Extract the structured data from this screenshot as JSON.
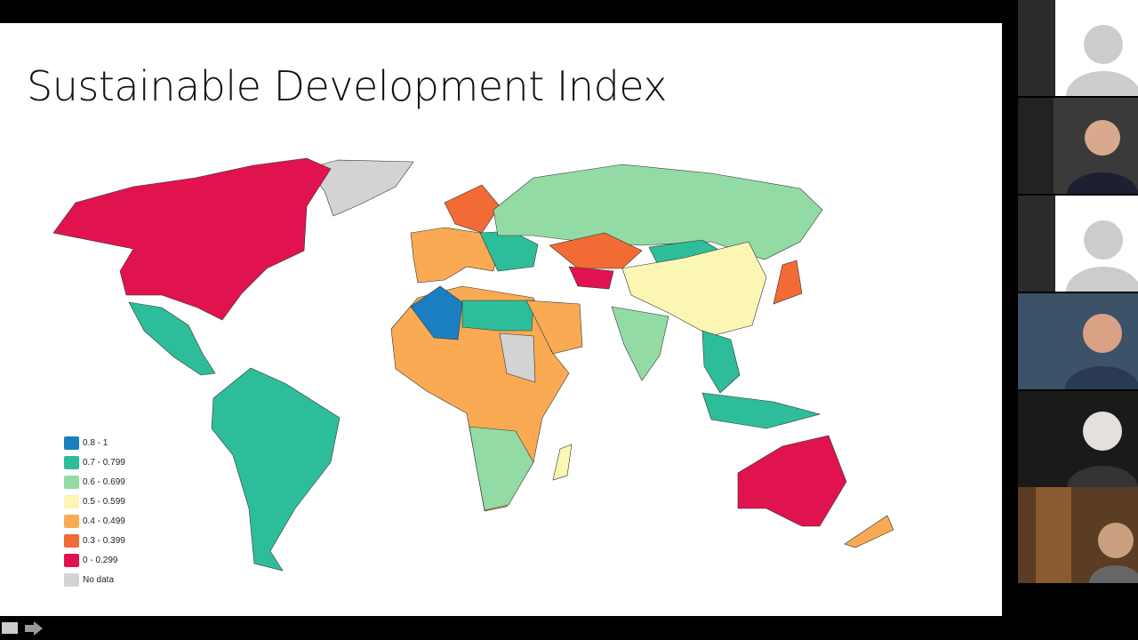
{
  "slide": {
    "title": "Sustainable Development Index"
  },
  "legend": [
    {
      "label": "0.8 - 1",
      "color": "#1a7fc1"
    },
    {
      "label": "0.7 - 0.799",
      "color": "#2dbd9a"
    },
    {
      "label": "0.6 - 0.699",
      "color": "#93dba4"
    },
    {
      "label": "0.5 - 0.599",
      "color": "#fbf6b3"
    },
    {
      "label": "0.4 - 0.499",
      "color": "#f9aa52"
    },
    {
      "label": "0.3 - 0.399",
      "color": "#f26b35"
    },
    {
      "label": "0 - 0.299",
      "color": "#e0134f"
    },
    {
      "label": "No data",
      "color": "#d3d3d3"
    }
  ]
}
